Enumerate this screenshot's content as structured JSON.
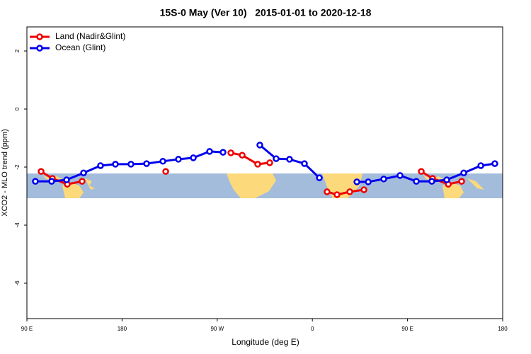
{
  "chart_data": {
    "type": "line",
    "title": "15S-0 May (Ver 10)   2015-01-01 to 2020-12-18",
    "x_label": "Longitude (deg E)",
    "y_label": "XCO2 - MLO trend (ppm)",
    "xlim": [
      90,
      540
    ],
    "ylim": [
      -7.22,
      2.83
    ],
    "xticks": [
      {
        "value": 90,
        "label": "90 E"
      },
      {
        "value": 180,
        "label": "180"
      },
      {
        "value": 270,
        "label": "90 W"
      },
      {
        "value": 360,
        "label": "0"
      },
      {
        "value": 450,
        "label": "90 E"
      },
      {
        "value": 540,
        "label": "180"
      }
    ],
    "yticks": [
      2,
      0,
      -2,
      -4,
      -6
    ],
    "legend": "top-left",
    "series": [
      {
        "name": "Land (Nadir&Glint)",
        "color": "#ee0000",
        "x": [
          103.4,
          114.1,
          128.2,
          142.2,
          180,
          221.3,
          255,
          282.9,
          293.6,
          308.3,
          319.7,
          350,
          373.9,
          383.3,
          395.4,
          408.8,
          440,
          463.0,
          473.7,
          488.5,
          501.2
        ],
        "values": [
          -2.15,
          -2.39,
          -2.59,
          -2.49,
          null,
          -2.15,
          null,
          -1.51,
          -1.59,
          -1.9,
          -1.85,
          null,
          -2.85,
          -2.95,
          -2.85,
          -2.78,
          null,
          -2.15,
          -2.39,
          -2.59,
          -2.49
        ]
      },
      {
        "name": "Ocean (Glint)",
        "color": "#0000ee",
        "x": [
          98.0,
          113.4,
          127.5,
          143.6,
          159.6,
          173.7,
          188.4,
          203.2,
          218.6,
          233.3,
          247.4,
          262.8,
          275.5,
          293,
          310.3,
          325.7,
          338.4,
          352.5,
          366.6,
          384,
          402.1,
          412.8,
          427.5,
          442.9,
          458.3,
          473.0,
          487.1,
          503.2,
          519.3,
          532.6
        ],
        "values": [
          -2.49,
          -2.49,
          -2.44,
          -2.2,
          -1.95,
          -1.9,
          -1.9,
          -1.88,
          -1.8,
          -1.73,
          -1.68,
          -1.46,
          -1.49,
          null,
          -1.24,
          -1.71,
          -1.73,
          -1.88,
          -2.37,
          null,
          -2.51,
          -2.51,
          -2.41,
          -2.29,
          -2.49,
          -2.49,
          -2.44,
          -2.2,
          -1.95,
          -1.88
        ]
      }
    ]
  }
}
